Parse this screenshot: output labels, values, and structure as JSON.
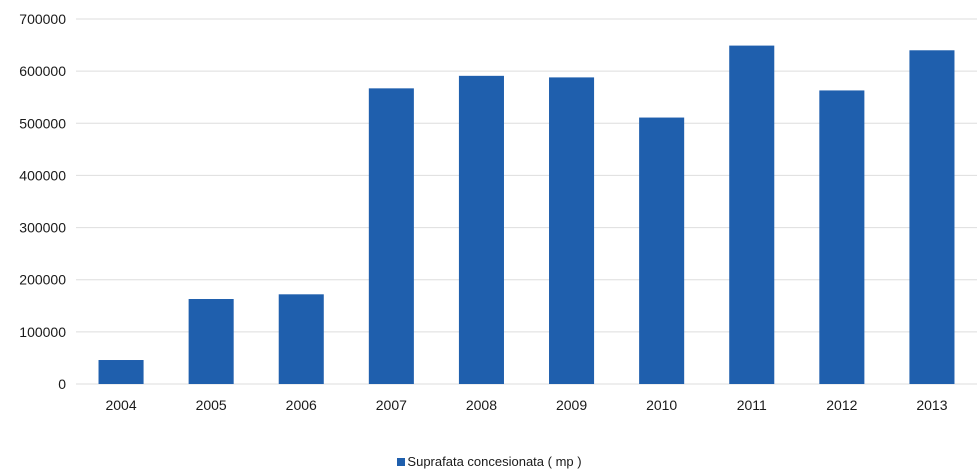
{
  "chart_data": {
    "type": "bar",
    "categories": [
      "2004",
      "2005",
      "2006",
      "2007",
      "2008",
      "2009",
      "2010",
      "2011",
      "2012",
      "2013"
    ],
    "series": [
      {
        "name": "Suprafata concesionata ( mp )",
        "values": [
          46000,
          163000,
          172000,
          567000,
          591000,
          588000,
          511000,
          649000,
          563000,
          640000
        ]
      }
    ],
    "yticks": [
      "0",
      "100000",
      "200000",
      "300000",
      "400000",
      "500000",
      "600000",
      "700000"
    ],
    "ylim": [
      0,
      700000
    ],
    "grid": true,
    "legend_position": "bottom",
    "colors": {
      "bar": "#1f5fad",
      "grid": "#dedede",
      "text": "#1a1a1a"
    }
  }
}
